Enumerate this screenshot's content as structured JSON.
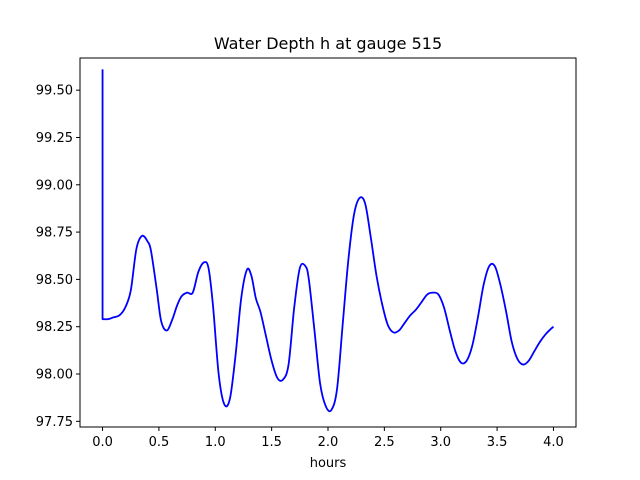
{
  "chart_data": {
    "type": "line",
    "title": "Water Depth h at gauge 515",
    "xlabel": "hours",
    "ylabel": "",
    "xlim": [
      -0.2,
      4.2
    ],
    "ylim": [
      97.72,
      99.67
    ],
    "xticks": [
      0.0,
      0.5,
      1.0,
      1.5,
      2.0,
      2.5,
      3.0,
      3.5,
      4.0
    ],
    "xtick_labels": [
      "0.0",
      "0.5",
      "1.0",
      "1.5",
      "2.0",
      "2.5",
      "3.0",
      "3.5",
      "4.0"
    ],
    "yticks": [
      97.75,
      98.0,
      98.25,
      98.5,
      98.75,
      99.0,
      99.25,
      99.5
    ],
    "ytick_labels": [
      "97.75",
      "98.00",
      "98.25",
      "98.50",
      "98.75",
      "99.00",
      "99.25",
      "99.50"
    ],
    "grid": false,
    "series": [
      {
        "color": "#0000ff",
        "x": [
          0.0,
          0.0,
          0.05,
          0.1,
          0.15,
          0.2,
          0.25,
          0.3,
          0.35,
          0.4,
          0.43,
          0.48,
          0.52,
          0.57,
          0.62,
          0.66,
          0.7,
          0.75,
          0.8,
          0.85,
          0.9,
          0.94,
          0.98,
          1.03,
          1.08,
          1.13,
          1.18,
          1.23,
          1.28,
          1.32,
          1.36,
          1.4,
          1.45,
          1.5,
          1.55,
          1.6,
          1.65,
          1.7,
          1.75,
          1.8,
          1.83,
          1.88,
          1.93,
          1.98,
          2.03,
          2.08,
          2.13,
          2.18,
          2.23,
          2.28,
          2.33,
          2.38,
          2.43,
          2.48,
          2.53,
          2.58,
          2.63,
          2.68,
          2.73,
          2.78,
          2.83,
          2.88,
          2.93,
          2.98,
          3.03,
          3.08,
          3.13,
          3.18,
          3.23,
          3.28,
          3.33,
          3.38,
          3.43,
          3.48,
          3.53,
          3.58,
          3.63,
          3.68,
          3.73,
          3.78,
          3.83,
          3.88,
          3.93,
          3.98,
          4.0
        ],
        "y": [
          99.61,
          98.29,
          98.29,
          98.3,
          98.31,
          98.35,
          98.44,
          98.66,
          98.73,
          98.7,
          98.65,
          98.45,
          98.28,
          98.23,
          98.29,
          98.36,
          98.41,
          98.43,
          98.43,
          98.54,
          98.59,
          98.56,
          98.36,
          98.0,
          97.84,
          97.87,
          98.1,
          98.4,
          98.55,
          98.52,
          98.4,
          98.33,
          98.2,
          98.07,
          97.98,
          97.97,
          98.05,
          98.35,
          98.56,
          98.57,
          98.5,
          98.23,
          97.95,
          97.83,
          97.81,
          97.92,
          98.26,
          98.6,
          98.84,
          98.93,
          98.9,
          98.72,
          98.52,
          98.37,
          98.26,
          98.22,
          98.23,
          98.27,
          98.31,
          98.34,
          98.38,
          98.42,
          98.43,
          98.42,
          98.35,
          98.23,
          98.12,
          98.06,
          98.07,
          98.15,
          98.3,
          98.47,
          98.57,
          98.57,
          98.47,
          98.33,
          98.17,
          98.08,
          98.05,
          98.07,
          98.12,
          98.17,
          98.21,
          98.24,
          98.25
        ]
      }
    ]
  }
}
